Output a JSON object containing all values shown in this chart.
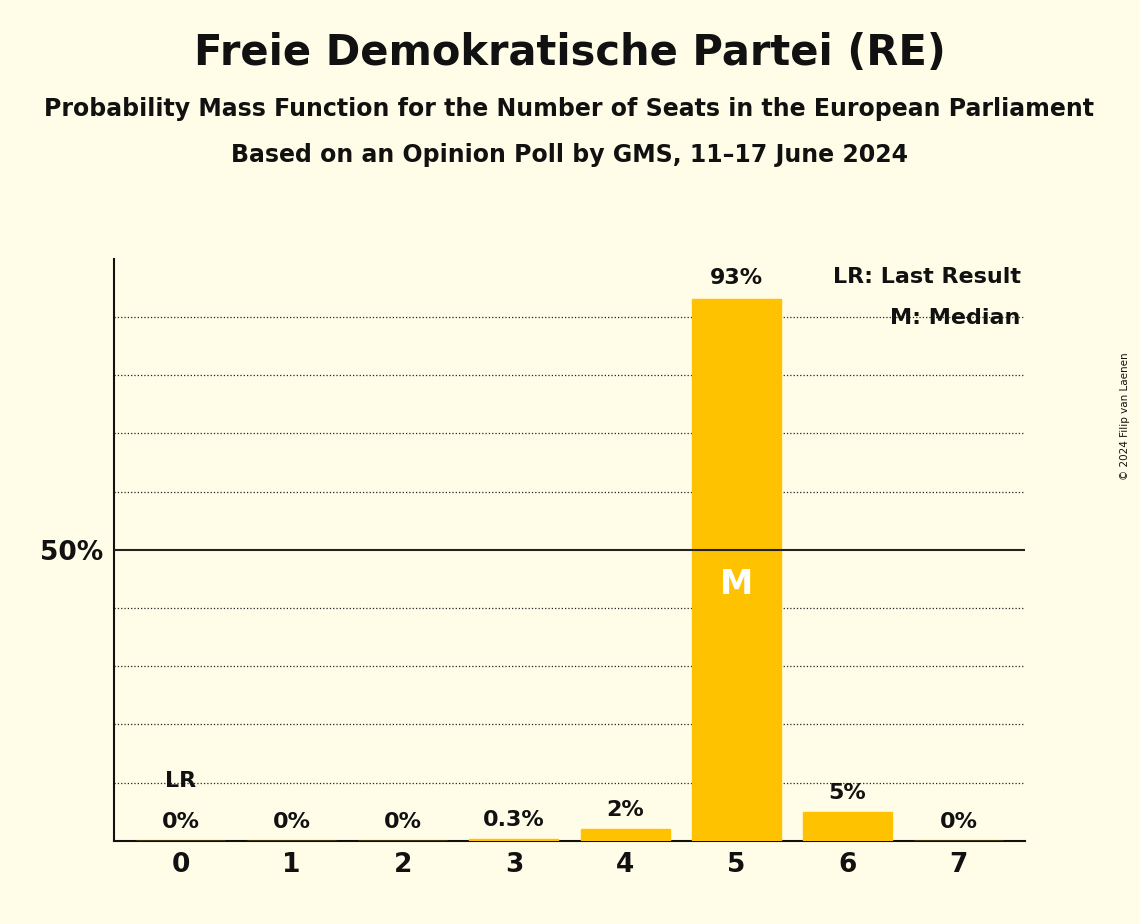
{
  "title": "Freie Demokratische Partei (RE)",
  "subtitle1": "Probability Mass Function for the Number of Seats in the European Parliament",
  "subtitle2": "Based on an Opinion Poll by GMS, 11–17 June 2024",
  "copyright": "© 2024 Filip van Laenen",
  "categories": [
    0,
    1,
    2,
    3,
    4,
    5,
    6,
    7
  ],
  "values": [
    0.0,
    0.0,
    0.0,
    0.3,
    2.0,
    93.0,
    5.0,
    0.0
  ],
  "bar_color": "#FFC200",
  "median_seat": 5,
  "lr_seat": 0,
  "labels": [
    "0%",
    "0%",
    "0%",
    "0.3%",
    "2%",
    "93%",
    "5%",
    "0%"
  ],
  "ylabel_50": "50%",
  "background_color": "#FFFDE7",
  "grid_color": "#222222",
  "text_color": "#111111",
  "lr_label": "LR",
  "median_label": "M",
  "legend_lr": "LR: Last Result",
  "legend_m": "M: Median",
  "ylim": [
    0,
    100
  ],
  "y_grid_lines": [
    10,
    20,
    30,
    40,
    50,
    60,
    70,
    80,
    90
  ],
  "title_fontsize": 30,
  "subtitle_fontsize": 17,
  "label_fontsize": 16,
  "tick_fontsize": 19,
  "legend_fontsize": 16,
  "median_text_fontsize": 24
}
